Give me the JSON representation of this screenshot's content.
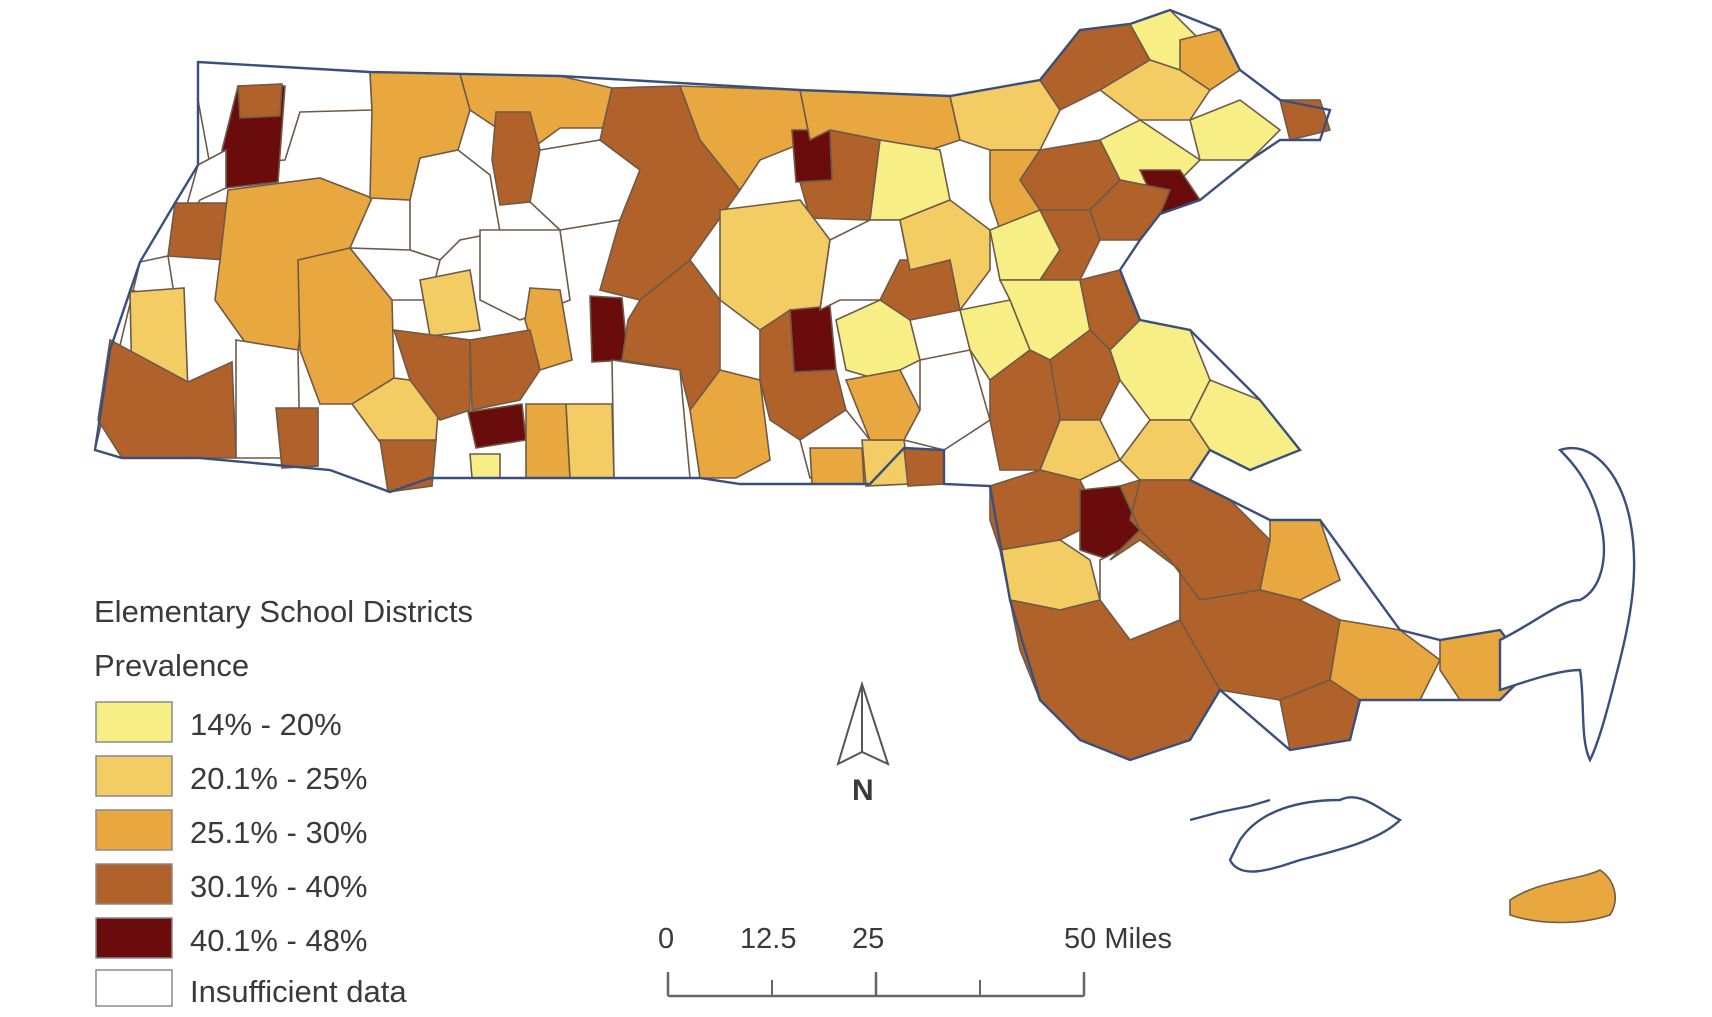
{
  "legend": {
    "title": "Elementary School Districts",
    "subtitle": "Prevalence",
    "classes": [
      {
        "label": "14% - 20%",
        "color": "#f7ef86"
      },
      {
        "label": "20.1% - 25%",
        "color": "#f3cc63"
      },
      {
        "label": "25.1% - 30%",
        "color": "#e8a73f"
      },
      {
        "label": "30.1% - 40%",
        "color": "#b0622a"
      },
      {
        "label": "40.1% - 48%",
        "color": "#6a0c0c"
      },
      {
        "label": "Insufficient data",
        "color": "#ffffff"
      }
    ]
  },
  "north_arrow": {
    "label": "N"
  },
  "scale_bar": {
    "ticks": [
      "0",
      "12.5",
      "25",
      "50 Miles"
    ]
  },
  "colors": {
    "outline": "#3b4f7d",
    "district_border": "#6f5a48"
  }
}
